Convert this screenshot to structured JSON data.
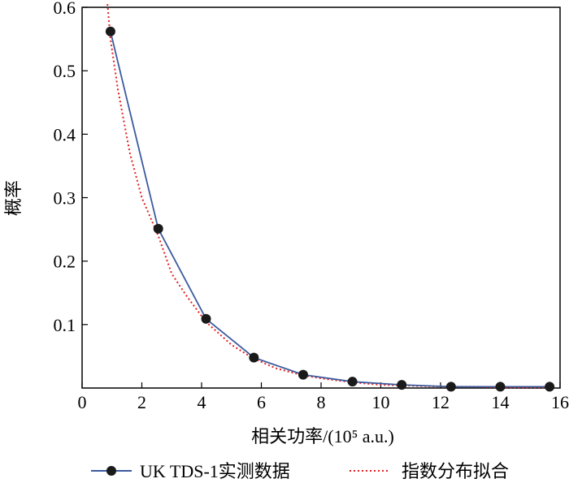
{
  "chart_data": {
    "type": "line",
    "xlabel": "相关功率/(10⁵ a.u.)",
    "ylabel": "概率",
    "xlim": [
      0,
      16
    ],
    "ylim": [
      0,
      0.6
    ],
    "xticks": [
      "0",
      "2",
      "4",
      "6",
      "8",
      "10",
      "12",
      "14",
      "16"
    ],
    "yticks": [
      "0.1",
      "0.2",
      "0.3",
      "0.4",
      "0.5",
      "0.6"
    ],
    "grid": false,
    "legend_position": "bottom",
    "series": [
      {
        "name": "UK TDS-1实测数据",
        "style": "solid line with filled circle markers",
        "color": "#3b5a9d",
        "x": [
          0.95,
          2.55,
          4.15,
          5.75,
          7.4,
          9.05,
          10.7,
          12.35,
          14.0,
          15.65
        ],
        "y": [
          0.562,
          0.251,
          0.109,
          0.048,
          0.021,
          0.01,
          0.005,
          0.002,
          0.002,
          0.002
        ]
      },
      {
        "name": "指数分布拟合",
        "style": "dotted line",
        "color": "#e02020",
        "x": [
          0.85,
          0.95,
          1.2,
          1.6,
          2.0,
          2.55,
          3.0,
          3.5,
          4.15,
          5.0,
          5.75,
          6.5,
          7.4,
          8.2,
          9.05,
          10.0,
          10.7,
          11.5,
          12.35,
          13.2,
          14.0,
          15.0,
          15.65
        ],
        "y": [
          0.605,
          0.55,
          0.47,
          0.37,
          0.3,
          0.24,
          0.18,
          0.145,
          0.104,
          0.068,
          0.046,
          0.031,
          0.02,
          0.014,
          0.009,
          0.005,
          0.004,
          0.003,
          0.002,
          0.002,
          0.001,
          0.001,
          0.001
        ]
      }
    ]
  }
}
